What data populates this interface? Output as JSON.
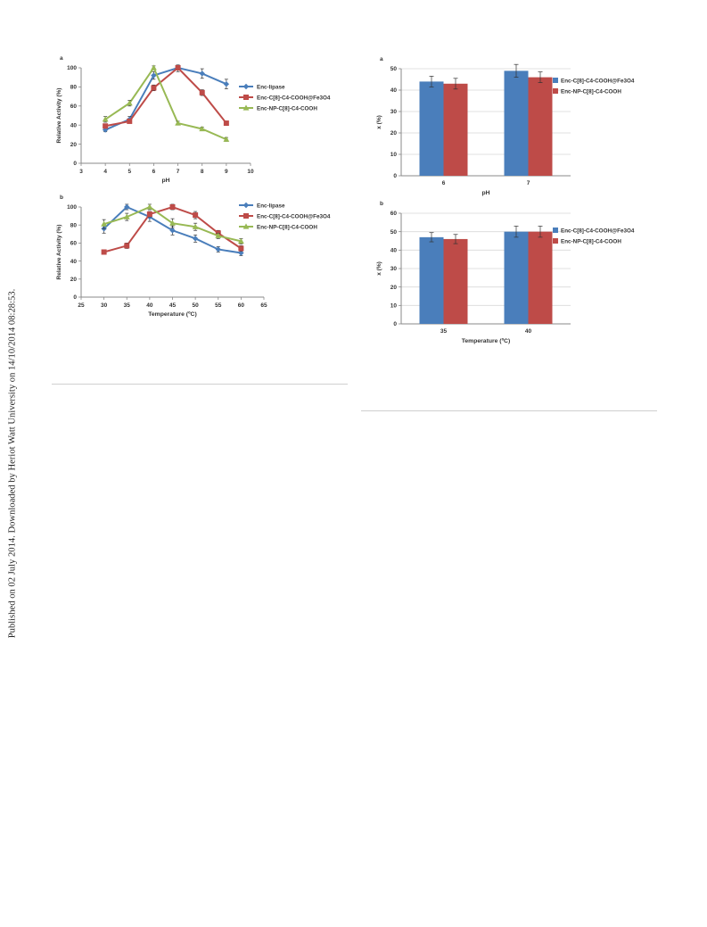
{
  "watermark": "Published on 02 July 2014. Downloaded by Heriot Watt University on 14/10/2014 08:28:53.",
  "colors": {
    "blue": "#4a7ebb",
    "red": "#be4b48",
    "green": "#98b954",
    "grid": "#d9d9d9"
  },
  "chart_data": [
    {
      "id": "ph-activity",
      "panel_label": "a",
      "type": "line",
      "xlabel": "pH",
      "ylabel": "Relative Activity (%)",
      "xlim": [
        3,
        10
      ],
      "ylim": [
        0,
        100
      ],
      "xticks": [
        3,
        4,
        5,
        6,
        7,
        8,
        9,
        10
      ],
      "yticks": [
        0,
        20,
        40,
        60,
        80,
        100
      ],
      "grid": false,
      "legend_position": "right",
      "series": [
        {
          "name": "Enc-lipase",
          "color": "#4a7ebb",
          "marker": "diamond",
          "x": [
            4,
            5,
            6,
            7,
            8,
            9
          ],
          "y": [
            35,
            46,
            92,
            100,
            94,
            83
          ],
          "err": [
            2,
            3,
            4,
            4,
            5,
            5
          ]
        },
        {
          "name": "Enc-C[8]-C4-COOH@Fe3O4",
          "color": "#be4b48",
          "marker": "square",
          "x": [
            4,
            5,
            6,
            7,
            8,
            9
          ],
          "y": [
            39,
            44,
            79,
            100,
            74,
            42
          ],
          "err": [
            2,
            2,
            3,
            2,
            3,
            2
          ]
        },
        {
          "name": "Enc-NP-C[8]-C4-COOH",
          "color": "#98b954",
          "marker": "triangle",
          "x": [
            4,
            5,
            6,
            7,
            8,
            9
          ],
          "y": [
            46,
            63,
            100,
            42,
            36,
            25
          ],
          "err": [
            3,
            3,
            2,
            2,
            2,
            2
          ]
        }
      ]
    },
    {
      "id": "ph-conversion",
      "panel_label": "a",
      "type": "bar",
      "xlabel": "pH",
      "ylabel": "x (%)",
      "categories": [
        "6",
        "7"
      ],
      "ylim": [
        0,
        50
      ],
      "yticks": [
        0,
        10,
        20,
        30,
        40,
        50
      ],
      "grid": true,
      "legend_position": "right",
      "series": [
        {
          "name": "Enc-C[8]-C4-COOH@Fe3O4",
          "color": "#4a7ebb",
          "values": [
            44,
            49
          ],
          "err": [
            2.5,
            3
          ]
        },
        {
          "name": "Enc-NP-C[8]-C4-COOH",
          "color": "#be4b48",
          "values": [
            43,
            46
          ],
          "err": [
            2.5,
            2.5
          ]
        }
      ]
    },
    {
      "id": "temperature-activity",
      "panel_label": "b",
      "type": "line",
      "xlabel": "Temperature (ºC)",
      "ylabel": "Relative Activity (%)",
      "xlim": [
        25,
        65
      ],
      "ylim": [
        0,
        100
      ],
      "xticks": [
        25,
        30,
        35,
        40,
        45,
        50,
        55,
        60,
        65
      ],
      "yticks": [
        0,
        20,
        40,
        60,
        80,
        100
      ],
      "grid": false,
      "legend_position": "right",
      "series": [
        {
          "name": "Enc-lipase",
          "color": "#4a7ebb",
          "marker": "diamond",
          "x": [
            30,
            35,
            40,
            45,
            50,
            55,
            60
          ],
          "y": [
            76,
            100,
            89,
            74,
            65,
            53,
            49
          ],
          "err": [
            5,
            3,
            5,
            5,
            4,
            3,
            3
          ]
        },
        {
          "name": "Enc-C[8]-C4-COOH@Fe3O4",
          "color": "#be4b48",
          "marker": "square",
          "x": [
            30,
            35,
            40,
            45,
            50,
            55,
            60
          ],
          "y": [
            50,
            57,
            92,
            100,
            91,
            71,
            54
          ],
          "err": [
            2,
            3,
            3,
            3,
            4,
            3,
            3
          ]
        },
        {
          "name": "Enc-NP-C[8]-C4-COOH",
          "color": "#98b954",
          "marker": "triangle",
          "x": [
            30,
            35,
            40,
            45,
            50,
            55,
            60
          ],
          "y": [
            81,
            89,
            100,
            82,
            78,
            68,
            62
          ],
          "err": [
            5,
            4,
            3,
            5,
            4,
            3,
            3
          ]
        }
      ]
    },
    {
      "id": "temperature-conversion",
      "panel_label": "b",
      "type": "bar",
      "xlabel": "Temperature (ºC)",
      "ylabel": "x (%)",
      "categories": [
        "35",
        "40"
      ],
      "ylim": [
        0,
        60
      ],
      "yticks": [
        0,
        10,
        20,
        30,
        40,
        50,
        60
      ],
      "grid": true,
      "legend_position": "right",
      "series": [
        {
          "name": "Enc-C[8]-C4-COOH@Fe3O4",
          "color": "#4a7ebb",
          "values": [
            47,
            50
          ],
          "err": [
            2.5,
            3
          ]
        },
        {
          "name": "Enc-NP-C[8]-C4-COOH",
          "color": "#be4b48",
          "values": [
            46,
            50
          ],
          "err": [
            2.5,
            3
          ]
        }
      ]
    }
  ]
}
